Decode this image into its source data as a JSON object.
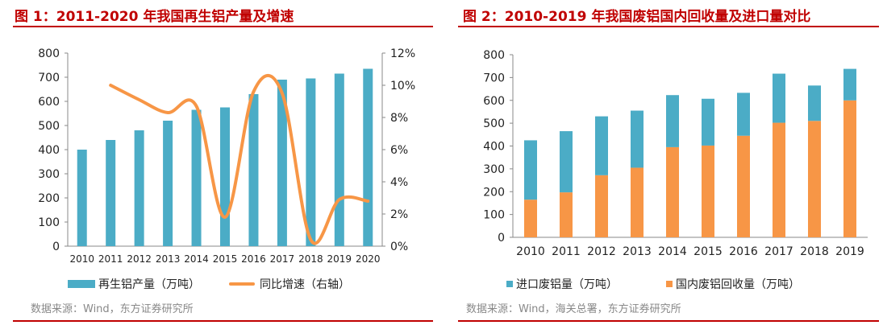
{
  "left": {
    "title": "图 1：2011-2020 年我国再生铝产量及增速",
    "source": "数据来源：Wind，东方证券研究所",
    "legend": {
      "bar_label": "再生铝产量（万吨）",
      "line_label": "同比增速（右轴）"
    }
  },
  "right": {
    "title": "图 2：2010-2019 年我国废铝国内回收量及进口量对比",
    "source": "数据来源：Wind，海关总署，东方证券研究所",
    "legend": {
      "import_label": "进口废铝量（万吨）",
      "domestic_label": "国内废铝回收量（万吨）"
    }
  },
  "colors": {
    "bar_blue": "#4bacc6",
    "line_orange": "#f79646",
    "title_red": "#c00000"
  },
  "chart_data": [
    {
      "type": "bar",
      "combo_with": "line",
      "categories": [
        "2010",
        "2011",
        "2012",
        "2013",
        "2014",
        "2015",
        "2016",
        "2017",
        "2018",
        "2019",
        "2020"
      ],
      "series": [
        {
          "name": "再生铝产量（万吨）",
          "axis": "left",
          "values": [
            400,
            440,
            480,
            520,
            565,
            575,
            630,
            690,
            695,
            715,
            735
          ]
        },
        {
          "name": "同比增速（右轴）",
          "axis": "right",
          "type": "line",
          "values": [
            null,
            10.0,
            9.1,
            8.3,
            8.7,
            1.8,
            9.6,
            9.5,
            0.4,
            2.9,
            2.8
          ]
        }
      ],
      "y_left": {
        "ylim": [
          0,
          800
        ],
        "ticks": [
          "0",
          "100",
          "200",
          "300",
          "400",
          "500",
          "600",
          "700",
          "800"
        ]
      },
      "y_right": {
        "ylim": [
          0,
          12
        ],
        "ticks": [
          "0%",
          "2%",
          "4%",
          "6%",
          "8%",
          "10%",
          "12%"
        ]
      },
      "grid": false
    },
    {
      "type": "bar",
      "stacked": true,
      "categories": [
        "2010",
        "2011",
        "2012",
        "2013",
        "2014",
        "2015",
        "2016",
        "2017",
        "2018",
        "2019"
      ],
      "series": [
        {
          "name": "国内废铝回收量（万吨）",
          "values": [
            165,
            197,
            272,
            305,
            395,
            402,
            445,
            502,
            510,
            600
          ]
        },
        {
          "name": "进口废铝量（万吨）",
          "values": [
            260,
            268,
            258,
            250,
            228,
            205,
            188,
            215,
            155,
            138
          ]
        }
      ],
      "ylim": [
        0,
        800
      ],
      "ticks": [
        "0",
        "100",
        "200",
        "300",
        "400",
        "500",
        "600",
        "700",
        "800"
      ],
      "grid": false
    }
  ]
}
